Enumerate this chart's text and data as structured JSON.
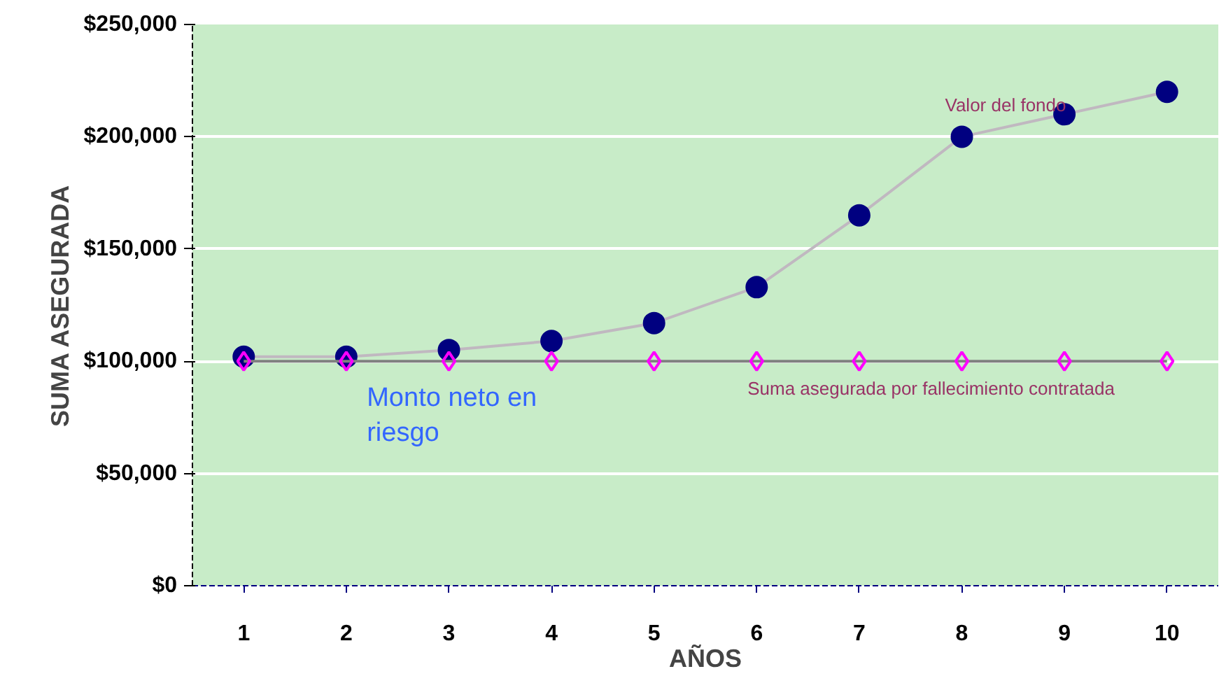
{
  "chart_data": {
    "type": "line",
    "xlabel": "AÑOS",
    "ylabel": "SUMA ASEGURADA",
    "categories": [
      "1",
      "2",
      "3",
      "4",
      "5",
      "6",
      "7",
      "8",
      "9",
      "10"
    ],
    "series": [
      {
        "name": "Valor del fondo",
        "color": "#000080",
        "marker": "circle",
        "values": [
          102000,
          102000,
          105000,
          109000,
          117000,
          133000,
          165000,
          200000,
          210000,
          220000
        ]
      },
      {
        "name": "Suma asegurada por fallecimiento contratada",
        "color": "#ff00ff",
        "marker": "diamond",
        "values": [
          100000,
          100000,
          100000,
          100000,
          100000,
          100000,
          100000,
          100000,
          100000,
          100000
        ]
      }
    ],
    "ylim": [
      0,
      250000
    ],
    "yticks": [
      {
        "value": 0,
        "label": "$0"
      },
      {
        "value": 50000,
        "label": "$50,000"
      },
      {
        "value": 100000,
        "label": "$100,000"
      },
      {
        "value": 150000,
        "label": "$150,000"
      },
      {
        "value": 200000,
        "label": "$200,000"
      },
      {
        "value": 250000,
        "label": "$250,000"
      }
    ],
    "grid": "y",
    "annotations": [
      "Monto neto en riesgo"
    ]
  }
}
